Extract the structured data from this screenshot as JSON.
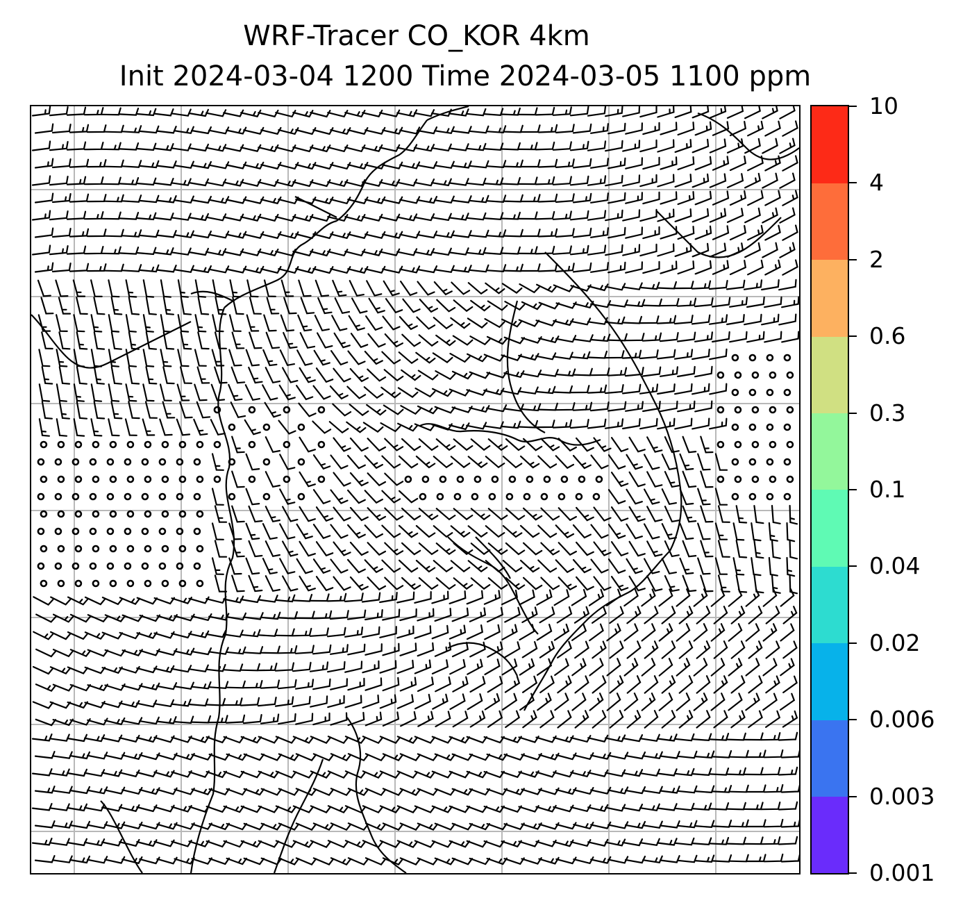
{
  "title": {
    "line1": "WRF-Tracer CO_KOR 4km",
    "line2": "Init 2024-03-04 1200 Time 2024-03-05 1100 ppm"
  },
  "colorbar": {
    "labels": [
      "0.001",
      "0.003",
      "0.006",
      "0.02",
      "0.04",
      "0.1",
      "0.3",
      "0.6",
      "2",
      "4",
      "10"
    ],
    "colors": [
      "#6a2cfb",
      "#3a74f0",
      "#07b2ea",
      "#2ddcd0",
      "#5ffab4",
      "#93f79b",
      "#d0e082",
      "#fdb160",
      "#fe6d3a",
      "#fd2a17"
    ]
  },
  "map": {
    "gridlines": true,
    "coastlines": true,
    "wind_barbs": true,
    "calm_markers": true
  }
}
